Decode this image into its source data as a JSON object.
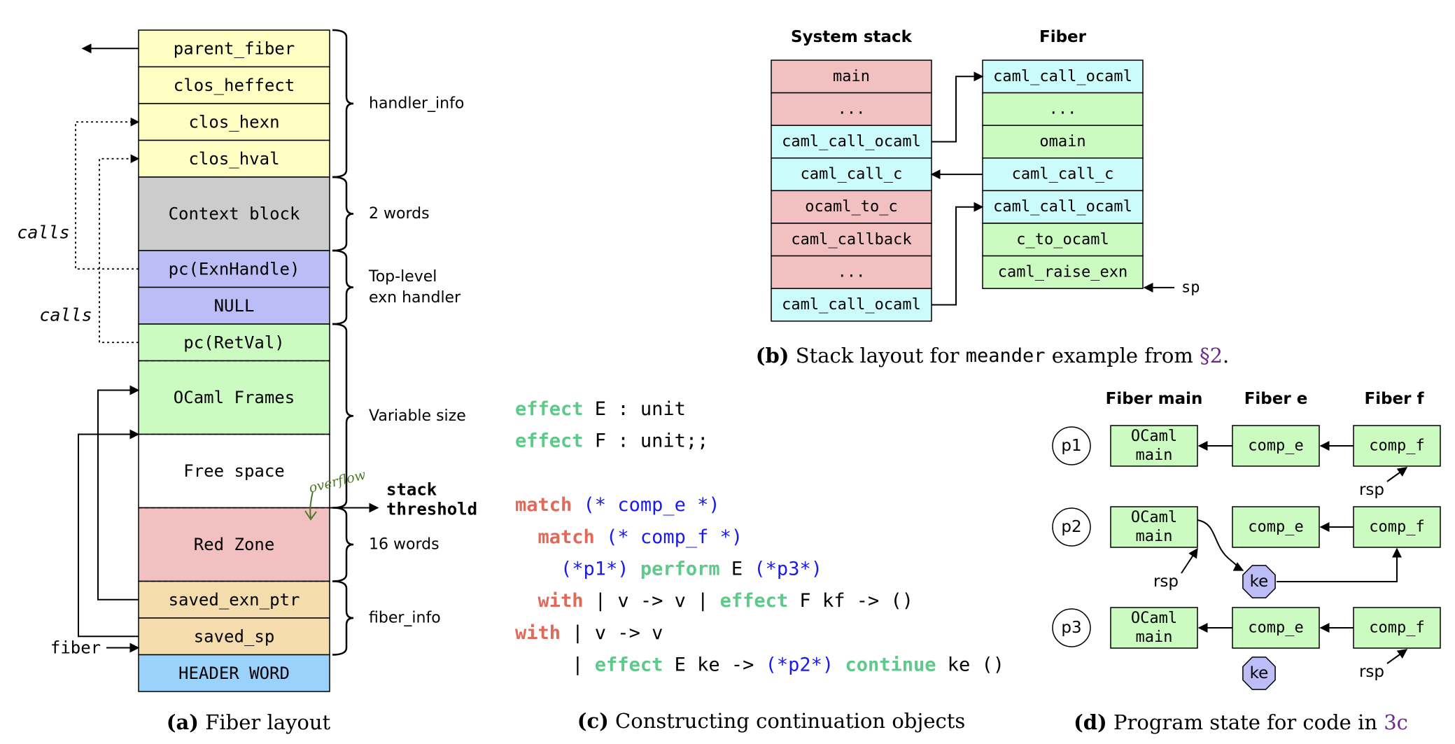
{
  "colors": {
    "yellow": "#ffffc4",
    "gray": "#cccccc",
    "purple": "#bcbcf7",
    "green": "#ccfbc1",
    "white": "#ffffff",
    "red": "#f2c0c0",
    "tan": "#f4dcad",
    "blue": "#9ad2fb",
    "cyan": "#ccfbfb",
    "octagon": "#bcbcf7",
    "kw_green": "#5fc98a",
    "kw_red": "#e06a5a",
    "comment_blue": "#1a1aee",
    "link_purple": "#6b2a8c"
  },
  "fig_a": {
    "caption": {
      "tag": "(a)",
      "text": "Fiber layout"
    },
    "rows": [
      {
        "label": "parent_fiber",
        "color": "yellow",
        "h": 1
      },
      {
        "label": "clos_heffect",
        "color": "yellow",
        "h": 1
      },
      {
        "label": "clos_hexn",
        "color": "yellow",
        "h": 1
      },
      {
        "label": "clos_hval",
        "color": "yellow",
        "h": 1
      },
      {
        "label": "Context block",
        "color": "gray",
        "h": 2
      },
      {
        "label": "pc(ExnHandle)",
        "color": "purple",
        "h": 1
      },
      {
        "label": "NULL",
        "color": "purple",
        "h": 1
      },
      {
        "label": "pc(RetVal)",
        "color": "green",
        "h": 1
      },
      {
        "label": "OCaml Frames",
        "color": "green",
        "h": 2,
        "dashed": true
      },
      {
        "label": "Free space",
        "color": "white",
        "h": 2,
        "dashed": true
      },
      {
        "label": "Red Zone",
        "color": "red",
        "h": 2,
        "dashed": true
      },
      {
        "label": "saved_exn_ptr",
        "color": "tan",
        "h": 1
      },
      {
        "label": "saved_sp",
        "color": "tan",
        "h": 1
      },
      {
        "label": "HEADER WORD",
        "color": "blue",
        "h": 1
      }
    ],
    "braces": [
      {
        "label": "handler_info",
        "from": 0,
        "to": 4
      },
      {
        "label": "2 words",
        "from": 4,
        "to": 5
      },
      {
        "label": "Top-level\nexn handler",
        "from": 5,
        "to": 7
      },
      {
        "label": "Variable size",
        "from": 7,
        "to": 10
      },
      {
        "label": "16 words",
        "from": 10,
        "to": 11
      },
      {
        "label": "fiber_info",
        "from": 11,
        "to": 13
      }
    ],
    "calls_label_1": "calls",
    "calls_label_2": "calls",
    "fiber_label": "fiber",
    "stack_threshold": "stack\nthreshold",
    "overflow_note": "overflow"
  },
  "fig_b": {
    "caption": {
      "tag": "(b)",
      "text_before": "Stack layout for ",
      "code": "meander",
      "text_after": " example from ",
      "link": "§2",
      "end": "."
    },
    "system_title": "System stack",
    "fiber_title": "Fiber",
    "system_rows": [
      {
        "label": "main",
        "color": "red"
      },
      {
        "label": "...",
        "color": "red"
      },
      {
        "label": "caml_call_ocaml",
        "color": "cyan"
      },
      {
        "label": "caml_call_c",
        "color": "cyan"
      },
      {
        "label": "ocaml_to_c",
        "color": "red"
      },
      {
        "label": "caml_callback",
        "color": "red"
      },
      {
        "label": "...",
        "color": "red"
      },
      {
        "label": "caml_call_ocaml",
        "color": "cyan"
      }
    ],
    "fiber_rows": [
      {
        "label": "caml_call_ocaml",
        "color": "cyan"
      },
      {
        "label": "...",
        "color": "green"
      },
      {
        "label": "omain",
        "color": "green"
      },
      {
        "label": "caml_call_c",
        "color": "cyan"
      },
      {
        "label": "caml_call_ocaml",
        "color": "cyan"
      },
      {
        "label": "c_to_ocaml",
        "color": "green"
      },
      {
        "label": "caml_raise_exn",
        "color": "green"
      }
    ],
    "sp_label": "sp"
  },
  "fig_c": {
    "caption": {
      "tag": "(c)",
      "text": "Constructing continuation objects"
    },
    "lines": [
      [
        {
          "t": "effect",
          "s": "kwg"
        },
        {
          "t": " E : unit",
          "s": "plain"
        }
      ],
      [
        {
          "t": "effect",
          "s": "kwg"
        },
        {
          "t": " F : unit;;",
          "s": "plain"
        }
      ],
      [],
      [
        {
          "t": "match",
          "s": "kwr"
        },
        {
          "t": " ",
          "s": "plain"
        },
        {
          "t": "(* comp_e *)",
          "s": "com"
        }
      ],
      [
        {
          "t": "  ",
          "s": "plain"
        },
        {
          "t": "match",
          "s": "kwr"
        },
        {
          "t": " ",
          "s": "plain"
        },
        {
          "t": "(* comp_f *)",
          "s": "com"
        }
      ],
      [
        {
          "t": "    ",
          "s": "plain"
        },
        {
          "t": "(*p1*)",
          "s": "com"
        },
        {
          "t": " ",
          "s": "plain"
        },
        {
          "t": "perform",
          "s": "kwg"
        },
        {
          "t": " E ",
          "s": "plain"
        },
        {
          "t": "(*p3*)",
          "s": "com"
        }
      ],
      [
        {
          "t": "  ",
          "s": "plain"
        },
        {
          "t": "with",
          "s": "kwr"
        },
        {
          "t": " | v -> v | ",
          "s": "plain"
        },
        {
          "t": "effect",
          "s": "kwg"
        },
        {
          "t": " F kf -> ()",
          "s": "plain"
        }
      ],
      [
        {
          "t": "with",
          "s": "kwr"
        },
        {
          "t": " | v -> v",
          "s": "plain"
        }
      ],
      [
        {
          "t": "     | ",
          "s": "plain"
        },
        {
          "t": "effect",
          "s": "kwg"
        },
        {
          "t": " E ke -> ",
          "s": "plain"
        },
        {
          "t": "(*p2*)",
          "s": "com"
        },
        {
          "t": " ",
          "s": "plain"
        },
        {
          "t": "continue",
          "s": "kwg"
        },
        {
          "t": " ke ()",
          "s": "plain"
        }
      ]
    ]
  },
  "fig_d": {
    "caption": {
      "tag": "(d)",
      "text_before": "Program state for code in ",
      "link": "3c"
    },
    "col_titles": [
      "Fiber main",
      "Fiber e",
      "Fiber f"
    ],
    "rows": [
      {
        "label": "p1",
        "boxes": [
          "OCaml\nmain",
          "comp_e",
          "comp_f"
        ]
      },
      {
        "label": "p2",
        "boxes": [
          "OCaml\nmain",
          "comp_e",
          "comp_f"
        ]
      },
      {
        "label": "p3",
        "boxes": [
          "OCaml\nmain",
          "comp_e",
          "comp_f"
        ]
      }
    ],
    "rsp_label": "rsp",
    "ke_label": "ke"
  }
}
